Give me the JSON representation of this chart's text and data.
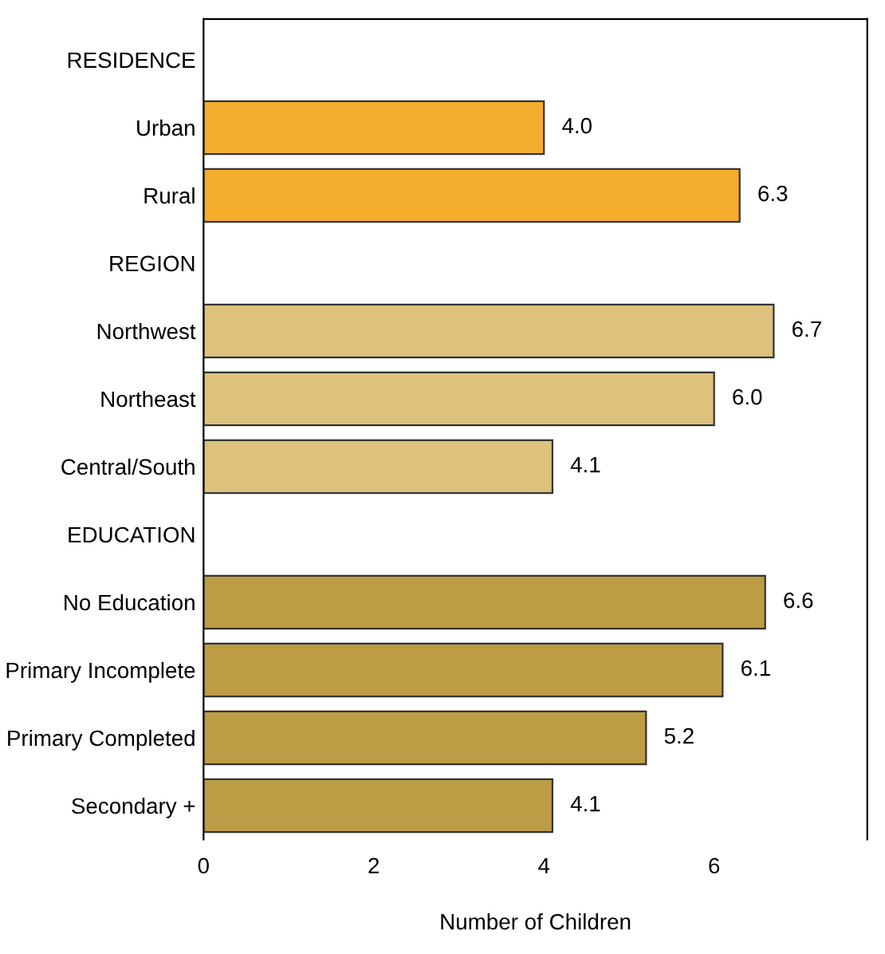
{
  "chart_data": {
    "type": "bar",
    "orientation": "horizontal",
    "xlabel": "Number of Children",
    "categories": [
      "RESIDENCE",
      "Urban",
      "Rural",
      "REGION",
      "Northwest",
      "Northeast",
      "Central/South",
      "EDUCATION",
      "No Education",
      "Primary Incomplete",
      "Primary Completed",
      "Secondary +"
    ],
    "values": [
      null,
      4.0,
      6.3,
      null,
      6.7,
      6.0,
      4.1,
      null,
      6.6,
      6.1,
      5.2,
      4.1
    ],
    "colors": [
      null,
      "#f5ad2e",
      "#f5ad2e",
      null,
      "#dcc27c",
      "#dcc27c",
      "#dcc27c",
      null,
      "#bc9c44",
      "#bc9c44",
      "#bc9c44",
      "#bc9c44"
    ],
    "value_labels": [
      null,
      "4.0",
      "6.3",
      null,
      "6.7",
      "6.0",
      "4.1",
      null,
      "6.6",
      "6.1",
      "5.2",
      "4.1"
    ],
    "xlim": [
      0,
      7.8
    ],
    "xticks": [
      0,
      2,
      4,
      6
    ],
    "grid": false
  }
}
